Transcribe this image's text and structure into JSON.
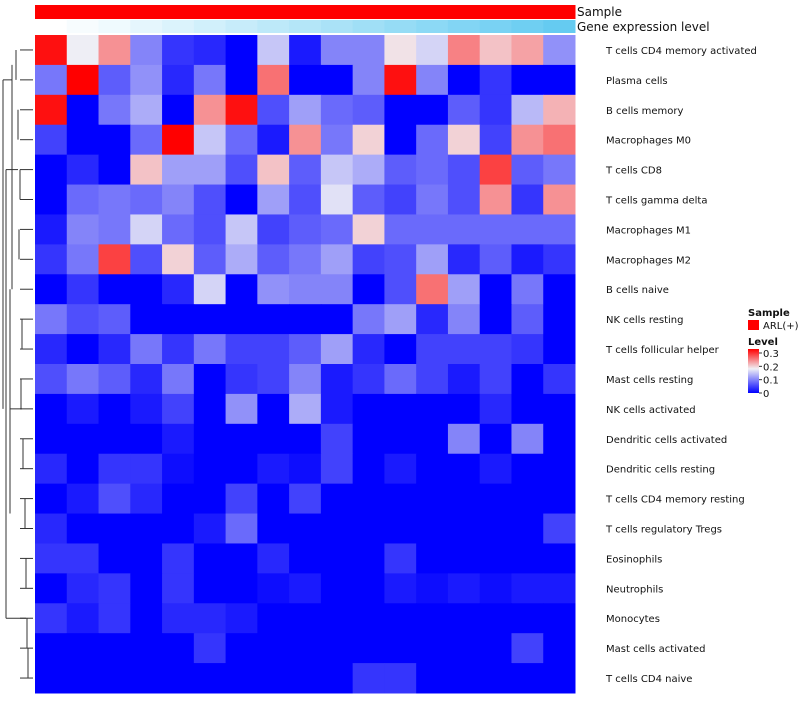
{
  "chart_data": {
    "type": "heatmap",
    "title": "",
    "annotations": {
      "sample_track_label": "Sample",
      "expression_track_label": "Gene expression level",
      "sample_color": "#ff0000",
      "expression_colors": [
        "#ffffff",
        "#5bc8f0"
      ]
    },
    "legend": {
      "placement": "right",
      "sample_title": "Sample",
      "sample_entry": "ARL(+)",
      "level_title": "Level",
      "level_ticks": [
        "0.3",
        "0.2",
        "0.1",
        "0"
      ],
      "level_tick_values": [
        0.3,
        0.2,
        0.1,
        0
      ],
      "low_color": "#0000ff",
      "mid_color": "#f0f0f5",
      "high_color": "#ff0000"
    },
    "rows": [
      "T cells CD4 memory activated",
      "Plasma cells",
      "B cells memory",
      "Macrophages M0",
      "T cells CD8",
      "T cells gamma delta",
      "Macrophages M1",
      "Macrophages M2",
      "B cells naive",
      "NK cells resting",
      "T cells follicular helper",
      "Mast cells resting",
      "NK cells activated",
      "Dendritic cells activated",
      "Dendritic cells resting",
      "T cells CD4 memory resting",
      "T cells regulatory  Tregs",
      "Eosinophils",
      "Neutrophils",
      "Monocytes",
      "Mast cells activated",
      "T cells CD4 naive"
    ],
    "n_columns": 17,
    "values": [
      [
        0.32,
        0.18,
        0.24,
        0.1,
        0.04,
        0.03,
        0.0,
        0.15,
        0.02,
        0.1,
        0.1,
        0.19,
        0.16,
        0.25,
        0.21,
        0.23,
        0.11
      ],
      [
        0.09,
        0.33,
        0.07,
        0.11,
        0.03,
        0.09,
        0.0,
        0.26,
        0.0,
        0.0,
        0.1,
        0.32,
        0.1,
        0.0,
        0.04,
        0.0,
        0.0
      ],
      [
        0.32,
        0.0,
        0.09,
        0.13,
        0.0,
        0.24,
        0.32,
        0.06,
        0.12,
        0.08,
        0.07,
        0.0,
        0.0,
        0.07,
        0.04,
        0.14,
        0.22
      ],
      [
        0.05,
        0.0,
        0.0,
        0.08,
        0.33,
        0.15,
        0.08,
        0.02,
        0.24,
        0.09,
        0.2,
        0.0,
        0.08,
        0.2,
        0.05,
        0.24,
        0.26
      ],
      [
        0.0,
        0.03,
        0.0,
        0.21,
        0.12,
        0.12,
        0.06,
        0.21,
        0.07,
        0.15,
        0.13,
        0.07,
        0.08,
        0.06,
        0.29,
        0.07,
        0.09
      ],
      [
        0.0,
        0.08,
        0.09,
        0.08,
        0.1,
        0.06,
        0.0,
        0.12,
        0.06,
        0.17,
        0.07,
        0.05,
        0.09,
        0.06,
        0.24,
        0.04,
        0.24
      ],
      [
        0.02,
        0.1,
        0.09,
        0.16,
        0.08,
        0.06,
        0.15,
        0.05,
        0.07,
        0.08,
        0.2,
        0.08,
        0.08,
        0.08,
        0.08,
        0.08,
        0.08
      ],
      [
        0.04,
        0.09,
        0.29,
        0.06,
        0.2,
        0.07,
        0.13,
        0.07,
        0.09,
        0.12,
        0.05,
        0.06,
        0.12,
        0.03,
        0.07,
        0.02,
        0.04
      ],
      [
        0.0,
        0.04,
        0.0,
        0.0,
        0.03,
        0.16,
        0.0,
        0.11,
        0.1,
        0.1,
        0.0,
        0.06,
        0.26,
        0.12,
        0.0,
        0.09,
        0.0
      ],
      [
        0.09,
        0.06,
        0.07,
        0.0,
        0.0,
        0.0,
        0.0,
        0.0,
        0.0,
        0.0,
        0.09,
        0.12,
        0.03,
        0.1,
        0.0,
        0.07,
        0.0
      ],
      [
        0.03,
        0.0,
        0.03,
        0.09,
        0.04,
        0.09,
        0.05,
        0.05,
        0.07,
        0.12,
        0.03,
        0.0,
        0.05,
        0.05,
        0.05,
        0.04,
        0.0
      ],
      [
        0.06,
        0.09,
        0.07,
        0.03,
        0.09,
        0.0,
        0.04,
        0.05,
        0.1,
        0.02,
        0.04,
        0.08,
        0.05,
        0.02,
        0.05,
        0.0,
        0.04
      ],
      [
        0.0,
        0.02,
        0.0,
        0.02,
        0.05,
        0.0,
        0.11,
        0.0,
        0.13,
        0.02,
        0.0,
        0.0,
        0.0,
        0.0,
        0.03,
        0.0,
        0.0
      ],
      [
        0.0,
        0.0,
        0.0,
        0.0,
        0.02,
        0.0,
        0.0,
        0.0,
        0.0,
        0.05,
        0.0,
        0.0,
        0.0,
        0.1,
        0.0,
        0.1,
        0.0
      ],
      [
        0.03,
        0.0,
        0.04,
        0.04,
        0.01,
        0.0,
        0.0,
        0.02,
        0.01,
        0.05,
        0.0,
        0.02,
        0.0,
        0.0,
        0.02,
        0.0,
        0.0
      ],
      [
        0.0,
        0.02,
        0.06,
        0.03,
        0.0,
        0.0,
        0.05,
        0.0,
        0.05,
        0.0,
        0.0,
        0.0,
        0.0,
        0.0,
        0.0,
        0.0,
        0.0
      ],
      [
        0.03,
        0.0,
        0.0,
        0.0,
        0.0,
        0.02,
        0.08,
        0.0,
        0.0,
        0.0,
        0.0,
        0.0,
        0.0,
        0.0,
        0.0,
        0.0,
        0.05
      ],
      [
        0.04,
        0.04,
        0.0,
        0.0,
        0.04,
        0.0,
        0.0,
        0.03,
        0.0,
        0.0,
        0.0,
        0.04,
        0.0,
        0.0,
        0.0,
        0.0,
        0.0
      ],
      [
        0.0,
        0.03,
        0.04,
        0.0,
        0.04,
        0.0,
        0.0,
        0.01,
        0.02,
        0.0,
        0.0,
        0.02,
        0.01,
        0.02,
        0.01,
        0.02,
        0.02
      ],
      [
        0.04,
        0.02,
        0.04,
        0.0,
        0.03,
        0.03,
        0.02,
        0.0,
        0.0,
        0.0,
        0.0,
        0.0,
        0.0,
        0.0,
        0.0,
        0.0,
        0.0
      ],
      [
        0.0,
        0.0,
        0.0,
        0.0,
        0.0,
        0.04,
        0.0,
        0.0,
        0.0,
        0.0,
        0.0,
        0.0,
        0.0,
        0.0,
        0.0,
        0.05,
        0.0
      ],
      [
        0.0,
        0.0,
        0.0,
        0.0,
        0.0,
        0.0,
        0.0,
        0.0,
        0.0,
        0.0,
        0.04,
        0.04,
        0.0,
        0.0,
        0.0,
        0.0,
        0.0
      ]
    ],
    "expression_track": [
      0.0,
      0.05,
      0.1,
      0.16,
      0.22,
      0.28,
      0.34,
      0.4,
      0.46,
      0.52,
      0.58,
      0.64,
      0.7,
      0.76,
      0.82,
      0.88,
      0.94
    ],
    "color_range": [
      0,
      0.33
    ],
    "row_dendrogram": true
  }
}
